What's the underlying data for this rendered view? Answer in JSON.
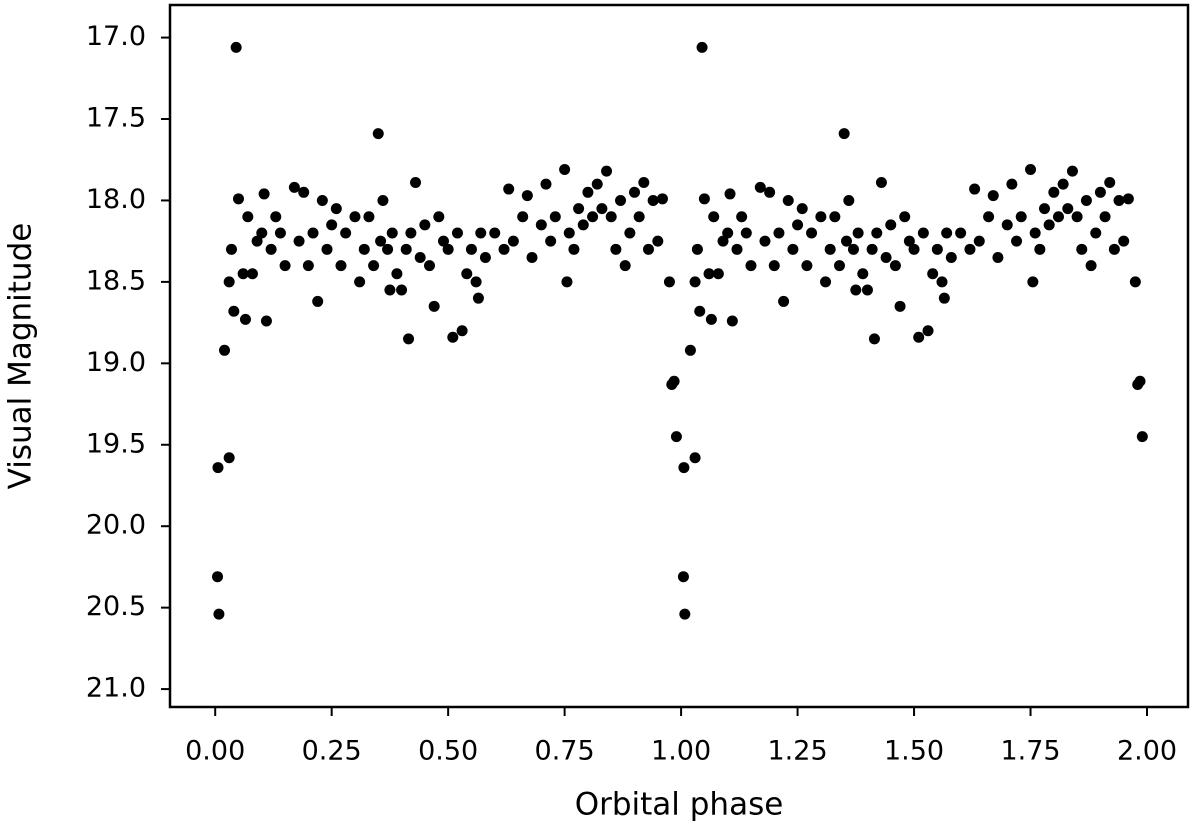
{
  "chart_data": {
    "type": "scatter",
    "xlabel": "Orbital phase",
    "ylabel": "Visual Magnitude",
    "color": "#000000",
    "xlim": [
      -0.097,
      2.088
    ],
    "ylim": [
      21.11,
      16.8
    ],
    "xticks": [
      {
        "value": 0,
        "label": "0.00"
      },
      {
        "value": 0.25,
        "label": "0.25"
      },
      {
        "value": 0.5,
        "label": "0.50"
      },
      {
        "value": 0.75,
        "label": "0.75"
      },
      {
        "value": 1,
        "label": "1.00"
      },
      {
        "value": 1.25,
        "label": "1.25"
      },
      {
        "value": 1.5,
        "label": "1.50"
      },
      {
        "value": 1.75,
        "label": "1.75"
      },
      {
        "value": 2,
        "label": "2.00"
      }
    ],
    "yticks": [
      {
        "value": 17,
        "label": "17.0"
      },
      {
        "value": 17.5,
        "label": "17.5"
      },
      {
        "value": 18,
        "label": "18.0"
      },
      {
        "value": 18.5,
        "label": "18.5"
      },
      {
        "value": 19,
        "label": "19.0"
      },
      {
        "value": 19.5,
        "label": "19.5"
      },
      {
        "value": 20,
        "label": "20.0"
      },
      {
        "value": 20.5,
        "label": "20.5"
      },
      {
        "value": 21,
        "label": "21.0"
      }
    ],
    "x": [
      0.005,
      0.008,
      0.006,
      0.02,
      0.03,
      0.045,
      0.03,
      0.035,
      0.04,
      0.05,
      0.06,
      0.065,
      0.07,
      0.08,
      0.09,
      0.1,
      0.105,
      0.11,
      0.12,
      0.13,
      0.14,
      0.15,
      0.17,
      0.18,
      0.19,
      0.2,
      0.21,
      0.22,
      0.23,
      0.24,
      0.25,
      0.26,
      0.27,
      0.28,
      0.3,
      0.31,
      0.32,
      0.33,
      0.34,
      0.35,
      0.355,
      0.36,
      0.37,
      0.375,
      0.38,
      0.39,
      0.4,
      0.41,
      0.415,
      0.42,
      0.43,
      0.44,
      0.45,
      0.46,
      0.47,
      0.48,
      0.49,
      0.5,
      0.51,
      0.52,
      0.53,
      0.54,
      0.55,
      0.56,
      0.565,
      0.57,
      0.58,
      0.6,
      0.62,
      0.63,
      0.64,
      0.66,
      0.67,
      0.68,
      0.7,
      0.71,
      0.72,
      0.73,
      0.75,
      0.755,
      0.76,
      0.77,
      0.78,
      0.79,
      0.8,
      0.81,
      0.82,
      0.83,
      0.84,
      0.85,
      0.86,
      0.87,
      0.88,
      0.89,
      0.9,
      0.91,
      0.92,
      0.93,
      0.94,
      0.95,
      0.96,
      0.975,
      0.98,
      0.985,
      0.99,
      1.005,
      1.008,
      1.006,
      1.02,
      1.03,
      1.045,
      1.03,
      1.035,
      1.04,
      1.05,
      1.06,
      1.065,
      1.07,
      1.08,
      1.09,
      1.1,
      1.105,
      1.11,
      1.12,
      1.13,
      1.14,
      1.15,
      1.17,
      1.18,
      1.19,
      1.2,
      1.21,
      1.22,
      1.23,
      1.24,
      1.25,
      1.26,
      1.27,
      1.28,
      1.3,
      1.31,
      1.32,
      1.33,
      1.34,
      1.35,
      1.355,
      1.36,
      1.37,
      1.375,
      1.38,
      1.39,
      1.4,
      1.41,
      1.415,
      1.42,
      1.43,
      1.44,
      1.45,
      1.46,
      1.47,
      1.48,
      1.49,
      1.5,
      1.51,
      1.52,
      1.53,
      1.54,
      1.55,
      1.56,
      1.565,
      1.57,
      1.58,
      1.6,
      1.62,
      1.63,
      1.64,
      1.66,
      1.67,
      1.68,
      1.7,
      1.71,
      1.72,
      1.73,
      1.75,
      1.755,
      1.76,
      1.77,
      1.78,
      1.79,
      1.8,
      1.81,
      1.82,
      1.83,
      1.84,
      1.85,
      1.86,
      1.87,
      1.88,
      1.89,
      1.9,
      1.91,
      1.92,
      1.93,
      1.94,
      1.95,
      1.96,
      1.975,
      1.98,
      1.985,
      1.99
    ],
    "y": [
      20.31,
      20.54,
      19.64,
      18.92,
      19.58,
      17.06,
      18.5,
      18.3,
      18.68,
      17.99,
      18.45,
      18.73,
      18.1,
      18.45,
      18.25,
      18.2,
      17.96,
      18.74,
      18.3,
      18.1,
      18.2,
      18.4,
      17.92,
      18.25,
      17.95,
      18.4,
      18.2,
      18.62,
      18.0,
      18.3,
      18.15,
      18.05,
      18.4,
      18.2,
      18.1,
      18.5,
      18.3,
      18.1,
      18.4,
      17.59,
      18.25,
      18.0,
      18.3,
      18.55,
      18.2,
      18.45,
      18.55,
      18.3,
      18.85,
      18.2,
      17.89,
      18.35,
      18.15,
      18.4,
      18.65,
      18.1,
      18.25,
      18.3,
      18.84,
      18.2,
      18.8,
      18.45,
      18.3,
      18.5,
      18.6,
      18.2,
      18.35,
      18.2,
      18.3,
      17.93,
      18.25,
      18.1,
      17.97,
      18.35,
      18.15,
      17.9,
      18.25,
      18.1,
      17.81,
      18.5,
      18.2,
      18.3,
      18.05,
      18.15,
      17.95,
      18.1,
      17.9,
      18.05,
      17.82,
      18.1,
      18.3,
      18.0,
      18.4,
      18.2,
      17.95,
      18.1,
      17.89,
      18.3,
      18.0,
      18.25,
      17.99,
      18.5,
      19.13,
      19.11,
      19.45,
      20.31,
      20.54,
      19.64,
      18.92,
      19.58,
      17.06,
      18.5,
      18.3,
      18.68,
      17.99,
      18.45,
      18.73,
      18.1,
      18.45,
      18.25,
      18.2,
      17.96,
      18.74,
      18.3,
      18.1,
      18.2,
      18.4,
      17.92,
      18.25,
      17.95,
      18.4,
      18.2,
      18.62,
      18.0,
      18.3,
      18.15,
      18.05,
      18.4,
      18.2,
      18.1,
      18.5,
      18.3,
      18.1,
      18.4,
      17.59,
      18.25,
      18.0,
      18.3,
      18.55,
      18.2,
      18.45,
      18.55,
      18.3,
      18.85,
      18.2,
      17.89,
      18.35,
      18.15,
      18.4,
      18.65,
      18.1,
      18.25,
      18.3,
      18.84,
      18.2,
      18.8,
      18.45,
      18.3,
      18.5,
      18.6,
      18.2,
      18.35,
      18.2,
      18.3,
      17.93,
      18.25,
      18.1,
      17.97,
      18.35,
      18.15,
      17.9,
      18.25,
      18.1,
      17.81,
      18.5,
      18.2,
      18.3,
      18.05,
      18.15,
      17.95,
      18.1,
      17.9,
      18.05,
      17.82,
      18.1,
      18.3,
      18.0,
      18.4,
      18.2,
      17.95,
      18.1,
      17.89,
      18.3,
      18.0,
      18.25,
      17.99,
      18.5,
      19.13,
      19.11,
      19.45
    ]
  }
}
